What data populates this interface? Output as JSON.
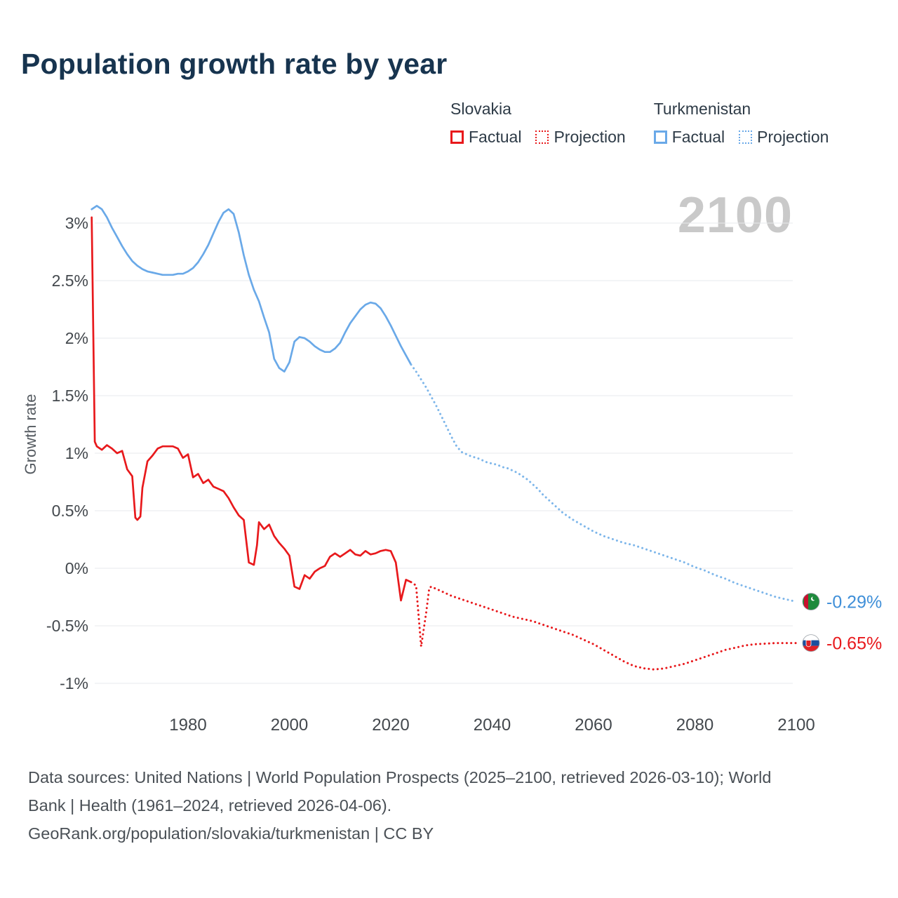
{
  "title": "Population growth rate by year",
  "watermark": "2100",
  "legend": {
    "groups": [
      {
        "country": "Slovakia",
        "color": "#e8191c",
        "items": [
          {
            "label": "Factual",
            "style": "solid"
          },
          {
            "label": "Projection",
            "style": "dotted"
          }
        ]
      },
      {
        "country": "Turkmenistan",
        "color": "#6aa9e8",
        "items": [
          {
            "label": "Factual",
            "style": "solid"
          },
          {
            "label": "Projection",
            "style": "dotted"
          }
        ]
      }
    ]
  },
  "footer": {
    "lines": [
      "Data sources: United Nations | World Population Prospects (2025–2100, retrieved 2026-03-10); World",
      "Bank | Health (1961–2024, retrieved 2026-04-06).",
      "GeoRank.org/population/slovakia/turkmenistan | CC BY"
    ]
  },
  "chart_data": {
    "type": "line",
    "title": "Population growth rate by year",
    "xlabel": "",
    "ylabel": "Growth rate",
    "xlim": [
      1961,
      2103
    ],
    "ylim": [
      -1.25,
      3.35
    ],
    "grid": "horizontal",
    "legend_position": "top-right",
    "x_ticks": [
      1980,
      2000,
      2020,
      2040,
      2060,
      2080,
      2100
    ],
    "y_ticks": [
      3,
      2.5,
      2,
      1.5,
      1,
      0.5,
      0,
      -0.5,
      -1
    ],
    "y_tick_labels": [
      "3%",
      "2.5%",
      "2%",
      "1.5%",
      "1%",
      "0.5%",
      "0%",
      "-0.5%",
      "-1%"
    ],
    "series": [
      {
        "name": "Turkmenistan Factual",
        "country": "Turkmenistan",
        "kind": "factual",
        "color": "#6aa9e8",
        "style": "solid",
        "points": [
          [
            1961,
            3.12
          ],
          [
            1962,
            3.15
          ],
          [
            1963,
            3.12
          ],
          [
            1964,
            3.05
          ],
          [
            1965,
            2.96
          ],
          [
            1966,
            2.88
          ],
          [
            1967,
            2.8
          ],
          [
            1968,
            2.73
          ],
          [
            1969,
            2.67
          ],
          [
            1970,
            2.63
          ],
          [
            1971,
            2.6
          ],
          [
            1972,
            2.58
          ],
          [
            1973,
            2.57
          ],
          [
            1974,
            2.56
          ],
          [
            1975,
            2.55
          ],
          [
            1976,
            2.55
          ],
          [
            1977,
            2.55
          ],
          [
            1978,
            2.56
          ],
          [
            1979,
            2.56
          ],
          [
            1980,
            2.58
          ],
          [
            1981,
            2.61
          ],
          [
            1982,
            2.66
          ],
          [
            1983,
            2.73
          ],
          [
            1984,
            2.81
          ],
          [
            1985,
            2.91
          ],
          [
            1986,
            3.01
          ],
          [
            1987,
            3.09
          ],
          [
            1988,
            3.12
          ],
          [
            1989,
            3.08
          ],
          [
            1990,
            2.92
          ],
          [
            1991,
            2.72
          ],
          [
            1992,
            2.55
          ],
          [
            1993,
            2.42
          ],
          [
            1994,
            2.32
          ],
          [
            1995,
            2.18
          ],
          [
            1996,
            2.05
          ],
          [
            1997,
            1.82
          ],
          [
            1998,
            1.74
          ],
          [
            1999,
            1.71
          ],
          [
            2000,
            1.79
          ],
          [
            2001,
            1.97
          ],
          [
            2002,
            2.01
          ],
          [
            2003,
            2.0
          ],
          [
            2004,
            1.97
          ],
          [
            2005,
            1.93
          ],
          [
            2006,
            1.9
          ],
          [
            2007,
            1.88
          ],
          [
            2008,
            1.88
          ],
          [
            2009,
            1.91
          ],
          [
            2010,
            1.96
          ],
          [
            2011,
            2.05
          ],
          [
            2012,
            2.13
          ],
          [
            2013,
            2.19
          ],
          [
            2014,
            2.25
          ],
          [
            2015,
            2.29
          ],
          [
            2016,
            2.31
          ],
          [
            2017,
            2.3
          ],
          [
            2018,
            2.26
          ],
          [
            2019,
            2.19
          ],
          [
            2020,
            2.11
          ],
          [
            2021,
            2.02
          ],
          [
            2022,
            1.93
          ],
          [
            2023,
            1.85
          ],
          [
            2024,
            1.77
          ]
        ]
      },
      {
        "name": "Turkmenistan Projection",
        "country": "Turkmenistan",
        "kind": "projection",
        "color": "#7db6ea",
        "style": "dotted",
        "points": [
          [
            2024,
            1.77
          ],
          [
            2025,
            1.71
          ],
          [
            2026,
            1.64
          ],
          [
            2027,
            1.57
          ],
          [
            2028,
            1.49
          ],
          [
            2029,
            1.41
          ],
          [
            2030,
            1.32
          ],
          [
            2031,
            1.23
          ],
          [
            2032,
            1.14
          ],
          [
            2033,
            1.06
          ],
          [
            2034,
            1.01
          ],
          [
            2035,
            0.99
          ],
          [
            2036,
            0.97
          ],
          [
            2037,
            0.96
          ],
          [
            2038,
            0.94
          ],
          [
            2039,
            0.92
          ],
          [
            2040,
            0.91
          ],
          [
            2041,
            0.9
          ],
          [
            2042,
            0.88
          ],
          [
            2043,
            0.87
          ],
          [
            2044,
            0.85
          ],
          [
            2045,
            0.83
          ],
          [
            2046,
            0.8
          ],
          [
            2047,
            0.77
          ],
          [
            2048,
            0.73
          ],
          [
            2049,
            0.69
          ],
          [
            2050,
            0.64
          ],
          [
            2052,
            0.56
          ],
          [
            2054,
            0.48
          ],
          [
            2056,
            0.42
          ],
          [
            2058,
            0.37
          ],
          [
            2060,
            0.32
          ],
          [
            2062,
            0.28
          ],
          [
            2064,
            0.25
          ],
          [
            2066,
            0.22
          ],
          [
            2068,
            0.2
          ],
          [
            2070,
            0.17
          ],
          [
            2072,
            0.14
          ],
          [
            2074,
            0.11
          ],
          [
            2076,
            0.08
          ],
          [
            2078,
            0.05
          ],
          [
            2080,
            0.01
          ],
          [
            2082,
            -0.02
          ],
          [
            2084,
            -0.06
          ],
          [
            2086,
            -0.09
          ],
          [
            2088,
            -0.13
          ],
          [
            2090,
            -0.16
          ],
          [
            2092,
            -0.19
          ],
          [
            2094,
            -0.22
          ],
          [
            2096,
            -0.25
          ],
          [
            2098,
            -0.27
          ],
          [
            2100,
            -0.29
          ]
        ]
      },
      {
        "name": "Slovakia Factual",
        "country": "Slovakia",
        "kind": "factual",
        "color": "#e8191c",
        "style": "solid",
        "points": [
          [
            1961,
            3.05
          ],
          [
            1961.6,
            1.1
          ],
          [
            1962,
            1.06
          ],
          [
            1963,
            1.03
          ],
          [
            1964,
            1.07
          ],
          [
            1965,
            1.04
          ],
          [
            1966,
            1.0
          ],
          [
            1967,
            1.02
          ],
          [
            1968,
            0.86
          ],
          [
            1969,
            0.8
          ],
          [
            1969.6,
            0.44
          ],
          [
            1970,
            0.42
          ],
          [
            1970.6,
            0.45
          ],
          [
            1971,
            0.7
          ],
          [
            1972,
            0.93
          ],
          [
            1973,
            0.98
          ],
          [
            1974,
            1.04
          ],
          [
            1975,
            1.06
          ],
          [
            1976,
            1.06
          ],
          [
            1977,
            1.06
          ],
          [
            1978,
            1.04
          ],
          [
            1979,
            0.96
          ],
          [
            1980,
            0.99
          ],
          [
            1981,
            0.79
          ],
          [
            1982,
            0.82
          ],
          [
            1983,
            0.74
          ],
          [
            1984,
            0.77
          ],
          [
            1985,
            0.71
          ],
          [
            1986,
            0.69
          ],
          [
            1987,
            0.67
          ],
          [
            1988,
            0.61
          ],
          [
            1989,
            0.53
          ],
          [
            1990,
            0.46
          ],
          [
            1991,
            0.42
          ],
          [
            1992,
            0.05
          ],
          [
            1993,
            0.03
          ],
          [
            1993.6,
            0.2
          ],
          [
            1994,
            0.4
          ],
          [
            1995,
            0.34
          ],
          [
            1996,
            0.38
          ],
          [
            1997,
            0.28
          ],
          [
            1998,
            0.22
          ],
          [
            1999,
            0.17
          ],
          [
            2000,
            0.11
          ],
          [
            2001,
            -0.16
          ],
          [
            2002,
            -0.18
          ],
          [
            2003,
            -0.06
          ],
          [
            2004,
            -0.09
          ],
          [
            2005,
            -0.03
          ],
          [
            2006,
            0.0
          ],
          [
            2007,
            0.02
          ],
          [
            2008,
            0.1
          ],
          [
            2009,
            0.13
          ],
          [
            2010,
            0.1
          ],
          [
            2011,
            0.13
          ],
          [
            2012,
            0.16
          ],
          [
            2013,
            0.12
          ],
          [
            2014,
            0.11
          ],
          [
            2015,
            0.15
          ],
          [
            2016,
            0.12
          ],
          [
            2017,
            0.13
          ],
          [
            2018,
            0.15
          ],
          [
            2019,
            0.16
          ],
          [
            2020,
            0.15
          ],
          [
            2021,
            0.05
          ],
          [
            2022,
            -0.28
          ],
          [
            2023,
            -0.1
          ],
          [
            2024,
            -0.12
          ]
        ]
      },
      {
        "name": "Slovakia Projection",
        "country": "Slovakia",
        "kind": "projection",
        "color": "#e8191c",
        "style": "dotted",
        "points": [
          [
            2024,
            -0.12
          ],
          [
            2025,
            -0.15
          ],
          [
            2026,
            -0.68
          ],
          [
            2027,
            -0.38
          ],
          [
            2027.6,
            -0.17
          ],
          [
            2028,
            -0.16
          ],
          [
            2030,
            -0.2
          ],
          [
            2032,
            -0.24
          ],
          [
            2034,
            -0.27
          ],
          [
            2036,
            -0.3
          ],
          [
            2038,
            -0.33
          ],
          [
            2040,
            -0.36
          ],
          [
            2042,
            -0.39
          ],
          [
            2044,
            -0.42
          ],
          [
            2046,
            -0.44
          ],
          [
            2048,
            -0.46
          ],
          [
            2050,
            -0.49
          ],
          [
            2052,
            -0.52
          ],
          [
            2054,
            -0.55
          ],
          [
            2056,
            -0.58
          ],
          [
            2058,
            -0.62
          ],
          [
            2060,
            -0.66
          ],
          [
            2062,
            -0.71
          ],
          [
            2064,
            -0.76
          ],
          [
            2066,
            -0.81
          ],
          [
            2068,
            -0.85
          ],
          [
            2070,
            -0.87
          ],
          [
            2072,
            -0.88
          ],
          [
            2074,
            -0.87
          ],
          [
            2076,
            -0.85
          ],
          [
            2078,
            -0.83
          ],
          [
            2080,
            -0.8
          ],
          [
            2082,
            -0.77
          ],
          [
            2084,
            -0.74
          ],
          [
            2086,
            -0.71
          ],
          [
            2088,
            -0.69
          ],
          [
            2090,
            -0.67
          ],
          [
            2092,
            -0.66
          ],
          [
            2094,
            -0.655
          ],
          [
            2096,
            -0.65
          ],
          [
            2098,
            -0.65
          ],
          [
            2100,
            -0.65
          ]
        ]
      }
    ],
    "end_labels": [
      {
        "country": "Turkmenistan",
        "flag": "turkmenistan",
        "value": -0.29,
        "text": "-0.29%",
        "color": "#3f8fd8"
      },
      {
        "country": "Slovakia",
        "flag": "slovakia",
        "value": -0.65,
        "text": "-0.65%",
        "color": "#e8191c"
      }
    ]
  }
}
